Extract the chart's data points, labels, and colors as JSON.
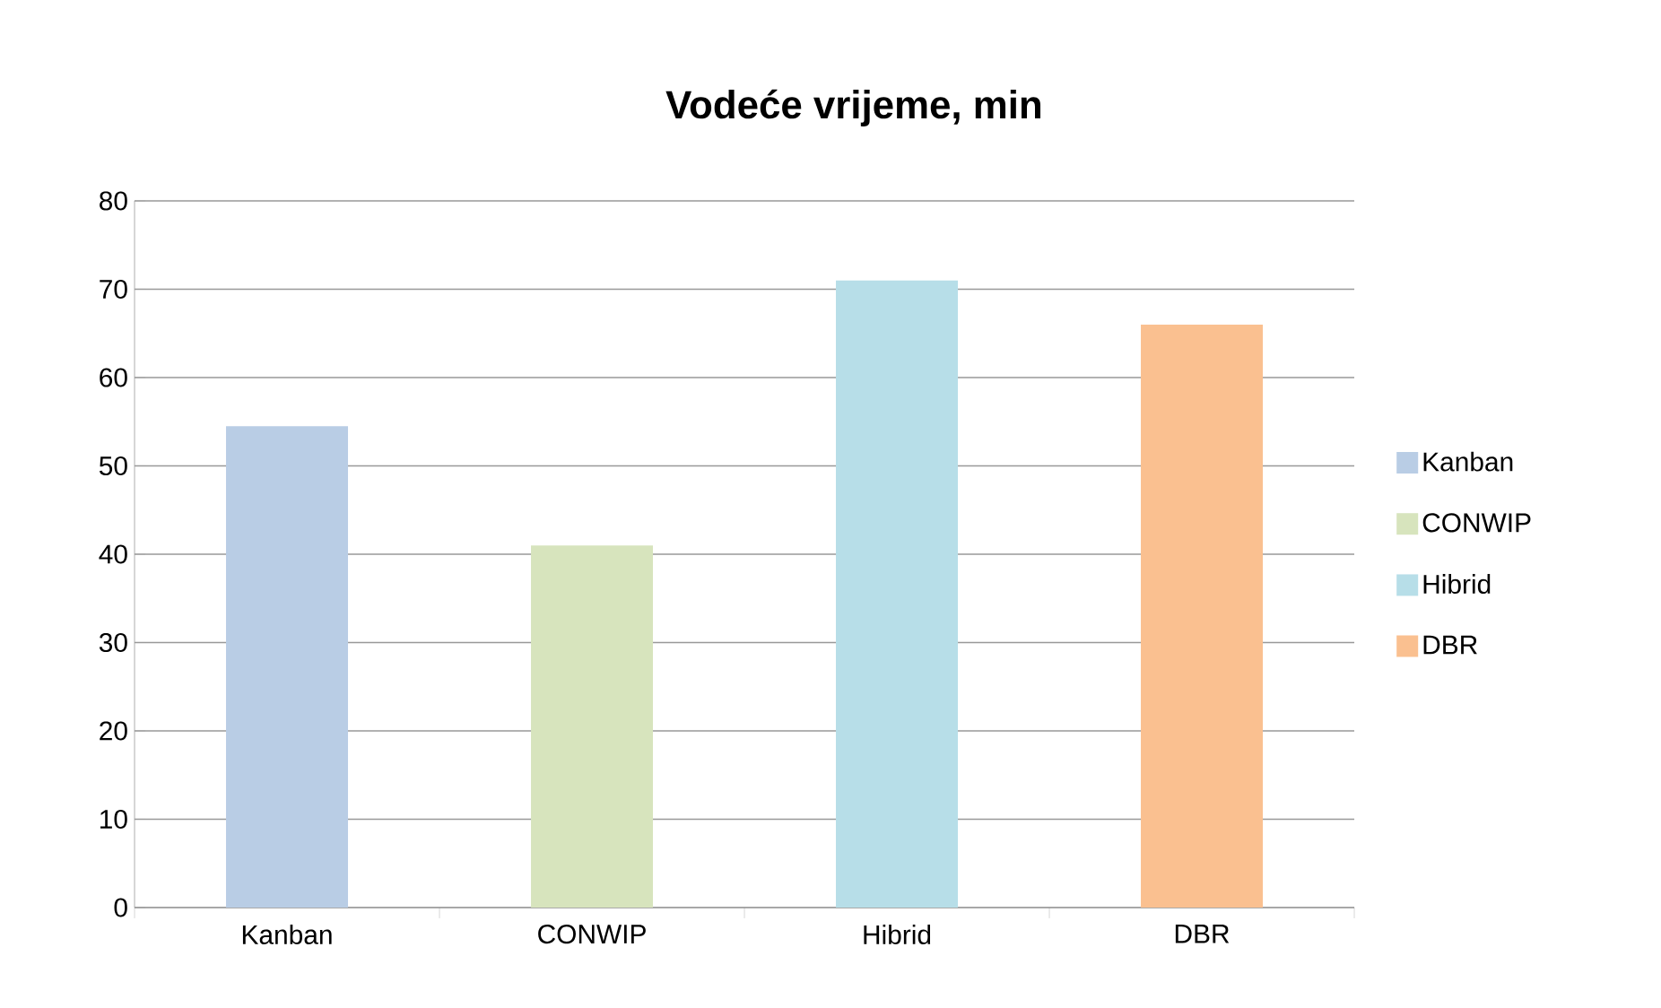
{
  "chart_data": {
    "type": "bar",
    "title": "Vodeće vrijeme, min",
    "categories": [
      "Kanban",
      "CONWIP",
      "Hibrid",
      "DBR"
    ],
    "series": [
      {
        "name": "Kanban",
        "color": "#b9cde5",
        "values": [
          54.5,
          null,
          null,
          null
        ]
      },
      {
        "name": "CONWIP",
        "color": "#d7e4bd",
        "values": [
          null,
          41,
          null,
          null
        ]
      },
      {
        "name": "Hibrid",
        "color": "#b7dee8",
        "values": [
          null,
          null,
          71,
          null
        ]
      },
      {
        "name": "DBR",
        "color": "#fac090",
        "values": [
          null,
          null,
          null,
          66
        ]
      }
    ],
    "ylim": [
      0,
      80
    ],
    "yticks": [
      0,
      10,
      20,
      30,
      40,
      50,
      60,
      70,
      80
    ],
    "grid": "y",
    "legend": "right"
  }
}
